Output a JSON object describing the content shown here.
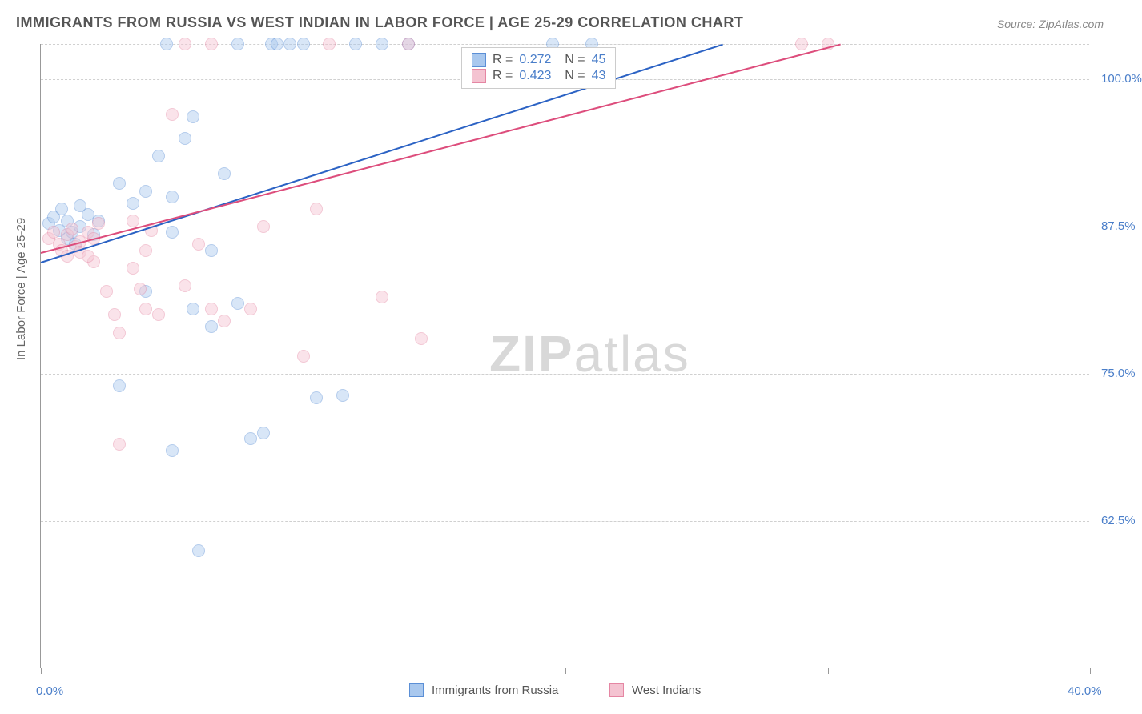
{
  "title": "IMMIGRANTS FROM RUSSIA VS WEST INDIAN IN LABOR FORCE | AGE 25-29 CORRELATION CHART",
  "source": "Source: ZipAtlas.com",
  "watermark": {
    "bold": "ZIP",
    "light": "atlas"
  },
  "y_axis_title": "In Labor Force | Age 25-29",
  "chart": {
    "type": "scatter",
    "background_color": "#ffffff",
    "grid_color": "#d0d0d0",
    "axis_color": "#999999",
    "xlim": [
      0,
      40
    ],
    "ylim": [
      50,
      103
    ],
    "x_ticks": [
      0,
      10,
      20,
      30,
      40
    ],
    "x_tick_labels": [
      "0.0%",
      "",
      "",
      "",
      "40.0%"
    ],
    "y_gridlines": [
      62.5,
      75.0,
      87.5,
      100.0,
      103.0
    ],
    "y_tick_labels": [
      "62.5%",
      "75.0%",
      "87.5%",
      "100.0%"
    ],
    "label_color": "#4a7ec9",
    "label_fontsize": 15,
    "title_color": "#555555",
    "title_fontsize": 18,
    "marker_radius": 8,
    "marker_opacity": 0.45,
    "line_width": 2,
    "series": [
      {
        "name": "Immigrants from Russia",
        "fill": "#a9c8ee",
        "stroke": "#5b8fd6",
        "line_color": "#2b62c4",
        "R": "0.272",
        "N": "45",
        "trend": {
          "x1": 0,
          "y1": 84.5,
          "x2": 26,
          "y2": 103
        },
        "points": [
          [
            0.3,
            87.8
          ],
          [
            0.5,
            88.3
          ],
          [
            0.7,
            87.2
          ],
          [
            0.8,
            89.0
          ],
          [
            1.0,
            86.5
          ],
          [
            1.0,
            88.0
          ],
          [
            1.2,
            87.0
          ],
          [
            1.3,
            86.0
          ],
          [
            1.5,
            87.5
          ],
          [
            1.8,
            88.5
          ],
          [
            1.5,
            89.3
          ],
          [
            2.0,
            86.8
          ],
          [
            2.2,
            88.0
          ],
          [
            3.0,
            91.2
          ],
          [
            3.5,
            89.5
          ],
          [
            3.0,
            74.0
          ],
          [
            4.0,
            82.0
          ],
          [
            4.5,
            93.5
          ],
          [
            4.8,
            103.0
          ],
          [
            5.0,
            87.0
          ],
          [
            5.0,
            90.0
          ],
          [
            5.0,
            68.5
          ],
          [
            5.5,
            95.0
          ],
          [
            5.8,
            96.8
          ],
          [
            5.8,
            80.5
          ],
          [
            6.0,
            60.0
          ],
          [
            6.5,
            85.5
          ],
          [
            7.0,
            92.0
          ],
          [
            7.5,
            103.0
          ],
          [
            7.5,
            81.0
          ],
          [
            8.0,
            69.5
          ],
          [
            8.5,
            70.0
          ],
          [
            8.8,
            103.0
          ],
          [
            9.0,
            103.0
          ],
          [
            9.5,
            103.0
          ],
          [
            10.0,
            103.0
          ],
          [
            10.5,
            73.0
          ],
          [
            11.5,
            73.2
          ],
          [
            12.0,
            103.0
          ],
          [
            13.0,
            103.0
          ],
          [
            14.0,
            103.0
          ],
          [
            19.5,
            103.0
          ],
          [
            21.0,
            103.0
          ],
          [
            6.5,
            79.0
          ],
          [
            4.0,
            90.5
          ]
        ]
      },
      {
        "name": "West Indians",
        "fill": "#f4c3d1",
        "stroke": "#e586a3",
        "line_color": "#dd4d7c",
        "R": "0.423",
        "N": "43",
        "trend": {
          "x1": 0,
          "y1": 85.3,
          "x2": 30.5,
          "y2": 103
        },
        "points": [
          [
            0.3,
            86.5
          ],
          [
            0.5,
            87.0
          ],
          [
            0.7,
            86.0
          ],
          [
            0.8,
            85.5
          ],
          [
            1.0,
            86.8
          ],
          [
            1.0,
            85.0
          ],
          [
            1.2,
            87.3
          ],
          [
            1.3,
            85.8
          ],
          [
            1.5,
            86.2
          ],
          [
            1.8,
            87.0
          ],
          [
            1.5,
            85.3
          ],
          [
            2.0,
            86.5
          ],
          [
            2.0,
            84.5
          ],
          [
            2.5,
            82.0
          ],
          [
            2.8,
            80.0
          ],
          [
            3.0,
            78.5
          ],
          [
            3.0,
            69.0
          ],
          [
            3.5,
            84.0
          ],
          [
            3.8,
            82.2
          ],
          [
            4.0,
            85.5
          ],
          [
            4.0,
            80.5
          ],
          [
            4.5,
            80.0
          ],
          [
            5.0,
            97.0
          ],
          [
            5.5,
            82.5
          ],
          [
            5.5,
            103.0
          ],
          [
            6.0,
            86.0
          ],
          [
            6.5,
            80.5
          ],
          [
            6.5,
            103.0
          ],
          [
            7.0,
            79.5
          ],
          [
            8.0,
            80.5
          ],
          [
            8.5,
            87.5
          ],
          [
            10.0,
            76.5
          ],
          [
            10.5,
            89.0
          ],
          [
            11.0,
            103.0
          ],
          [
            13.0,
            81.5
          ],
          [
            14.0,
            103.0
          ],
          [
            14.5,
            78.0
          ],
          [
            29.0,
            103.0
          ],
          [
            30.0,
            103.0
          ],
          [
            3.5,
            88.0
          ],
          [
            2.2,
            87.8
          ],
          [
            1.8,
            85.0
          ],
          [
            4.2,
            87.2
          ]
        ]
      }
    ]
  },
  "legend_bottom": {
    "items": [
      {
        "label": "Immigrants from Russia",
        "fill": "#a9c8ee",
        "stroke": "#5b8fd6"
      },
      {
        "label": "West Indians",
        "fill": "#f4c3d1",
        "stroke": "#e586a3"
      }
    ]
  }
}
